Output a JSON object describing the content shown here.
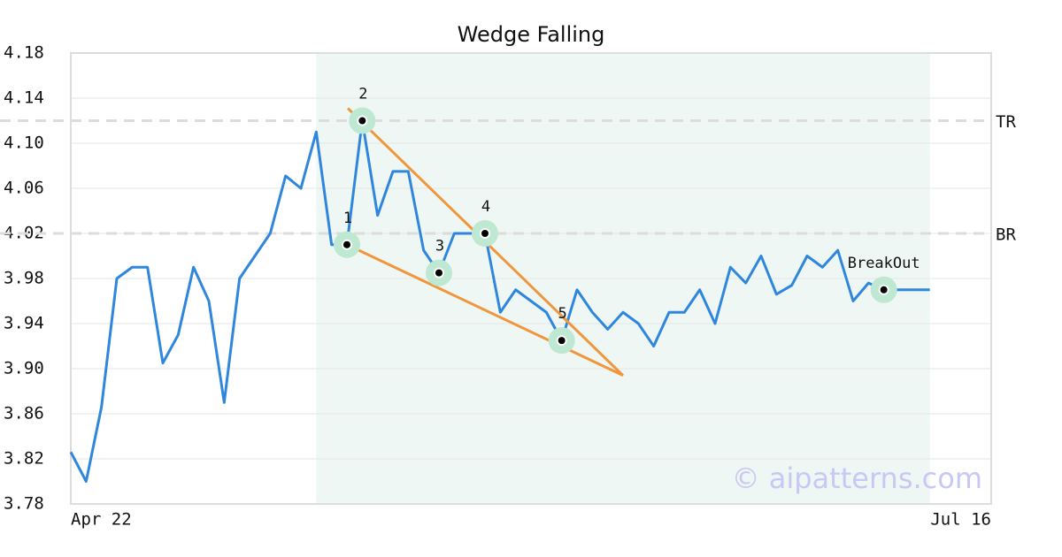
{
  "chart_data": {
    "type": "line",
    "title": "Wedge Falling",
    "x": [
      0,
      1,
      2,
      3,
      4,
      5,
      6,
      7,
      8,
      9,
      10,
      11,
      12,
      13,
      14,
      15,
      16,
      17,
      18,
      19,
      20,
      21,
      22,
      23,
      24,
      25,
      26,
      27,
      28,
      29,
      30,
      31,
      32,
      33,
      34,
      35,
      36,
      37,
      38,
      39,
      40,
      41,
      42,
      43,
      44,
      45,
      46,
      47,
      48,
      49,
      50,
      51,
      52,
      53,
      54,
      55,
      56
    ],
    "series": [
      {
        "color": "#2f86dd",
        "values": [
          3.826,
          3.8,
          3.866,
          3.98,
          3.99,
          3.99,
          3.905,
          3.93,
          3.99,
          3.96,
          3.87,
          3.98,
          4.0,
          4.02,
          4.071,
          4.06,
          4.11,
          4.01,
          4.01,
          4.12,
          4.036,
          4.075,
          4.075,
          4.005,
          3.985,
          4.02,
          4.02,
          4.02,
          3.95,
          3.97,
          3.96,
          3.95,
          3.925,
          3.97,
          3.95,
          3.935,
          3.95,
          3.94,
          3.92,
          3.95,
          3.95,
          3.97,
          3.94,
          3.99,
          3.976,
          4.0,
          3.966,
          3.974,
          4.0,
          3.99,
          4.005,
          3.96,
          3.976,
          3.97,
          3.97,
          3.97,
          3.97
        ]
      }
    ],
    "xlim": [
      0,
      60
    ],
    "xticks": [
      {
        "value": 0,
        "label": "Apr 22"
      },
      {
        "value": 60,
        "label": "Jul 16"
      }
    ],
    "ylim": [
      3.78,
      4.18
    ],
    "yticks": [
      3.78,
      3.82,
      3.86,
      {
        "value": 3.9,
        "label": "3.90"
      },
      3.94,
      3.98,
      4.02,
      4.06,
      {
        "value": 4.1,
        "label": "4.10"
      },
      4.14,
      4.18
    ],
    "grid": true,
    "highlight_range": [
      16,
      56
    ],
    "highlight_color": "#eef7f3",
    "reference_lines": [
      {
        "value": 4.12,
        "label": "TR"
      },
      {
        "value": 4.02,
        "label": "BR"
      }
    ],
    "trendlines": [
      {
        "color": "#f0963c",
        "x": [
          18.06,
          36
        ],
        "y": [
          4.131,
          3.894
        ]
      },
      {
        "color": "#f0963c",
        "x": [
          18,
          36
        ],
        "y": [
          4.01,
          3.894
        ]
      }
    ],
    "points": [
      {
        "label": "1",
        "x": 18,
        "y": 4.01
      },
      {
        "label": "2",
        "x": 19,
        "y": 4.12
      },
      {
        "label": "3",
        "x": 24,
        "y": 3.985
      },
      {
        "label": "4",
        "x": 27,
        "y": 4.02
      },
      {
        "label": "5",
        "x": 32,
        "y": 3.925
      },
      {
        "label": "BreakOut",
        "x": 53,
        "y": 3.97
      }
    ],
    "watermark": "© aipatterns.com"
  }
}
